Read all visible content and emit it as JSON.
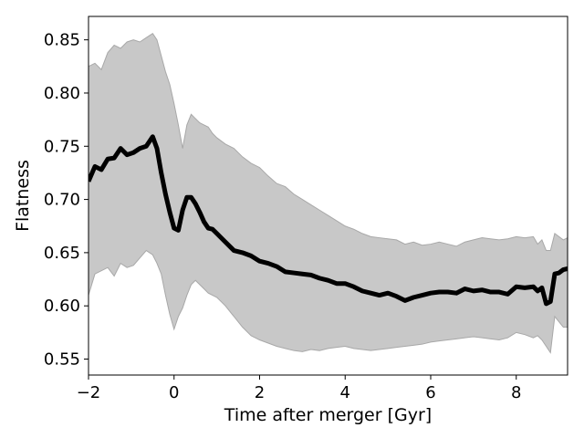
{
  "chart_data": {
    "type": "line",
    "title": "",
    "xlabel": "Time after merger [Gyr]",
    "ylabel": "Flatness",
    "xlim": [
      -2,
      9.2
    ],
    "ylim": [
      0.535,
      0.872
    ],
    "x_ticks": [
      -2,
      0,
      2,
      4,
      6,
      8
    ],
    "y_ticks": [
      0.55,
      0.6,
      0.65,
      0.7,
      0.75,
      0.8,
      0.85
    ],
    "grid": false,
    "legend": "none",
    "colors": {
      "line": "#000000",
      "band": "#c8c8c8",
      "band_edge": "#a8a8a8"
    },
    "series": [
      {
        "x": [
          -2.0,
          -1.85,
          -1.7,
          -1.55,
          -1.4,
          -1.25,
          -1.1,
          -0.95,
          -0.8,
          -0.65,
          -0.5,
          -0.4,
          -0.3,
          -0.2,
          -0.1,
          0.0,
          0.1,
          0.2,
          0.3,
          0.4,
          0.5,
          0.6,
          0.7,
          0.8,
          0.9,
          1.0,
          1.2,
          1.4,
          1.6,
          1.8,
          2.0,
          2.2,
          2.4,
          2.6,
          2.8,
          3.0,
          3.2,
          3.4,
          3.6,
          3.8,
          4.0,
          4.2,
          4.4,
          4.6,
          4.8,
          5.0,
          5.2,
          5.4,
          5.6,
          5.8,
          6.0,
          6.2,
          6.4,
          6.6,
          6.8,
          7.0,
          7.2,
          7.4,
          7.6,
          7.8,
          8.0,
          8.2,
          8.4,
          8.5,
          8.6,
          8.7,
          8.8,
          8.9,
          9.0,
          9.1,
          9.2
        ],
        "y": [
          0.717,
          0.731,
          0.728,
          0.738,
          0.739,
          0.748,
          0.742,
          0.744,
          0.748,
          0.75,
          0.759,
          0.748,
          0.725,
          0.705,
          0.688,
          0.673,
          0.671,
          0.69,
          0.702,
          0.702,
          0.696,
          0.688,
          0.679,
          0.673,
          0.672,
          0.668,
          0.66,
          0.652,
          0.65,
          0.647,
          0.642,
          0.64,
          0.637,
          0.632,
          0.631,
          0.63,
          0.629,
          0.626,
          0.624,
          0.621,
          0.621,
          0.618,
          0.614,
          0.612,
          0.61,
          0.612,
          0.609,
          0.605,
          0.608,
          0.61,
          0.612,
          0.613,
          0.613,
          0.612,
          0.616,
          0.614,
          0.615,
          0.613,
          0.613,
          0.611,
          0.618,
          0.617,
          0.618,
          0.614,
          0.617,
          0.602,
          0.604,
          0.63,
          0.631,
          0.634,
          0.635
        ],
        "upper": [
          0.825,
          0.828,
          0.822,
          0.838,
          0.845,
          0.842,
          0.848,
          0.85,
          0.848,
          0.852,
          0.856,
          0.85,
          0.835,
          0.82,
          0.808,
          0.79,
          0.77,
          0.748,
          0.77,
          0.78,
          0.776,
          0.772,
          0.77,
          0.768,
          0.762,
          0.758,
          0.752,
          0.748,
          0.74,
          0.734,
          0.73,
          0.722,
          0.715,
          0.712,
          0.705,
          0.7,
          0.695,
          0.69,
          0.685,
          0.68,
          0.675,
          0.672,
          0.668,
          0.665,
          0.664,
          0.663,
          0.662,
          0.658,
          0.66,
          0.657,
          0.658,
          0.66,
          0.658,
          0.656,
          0.66,
          0.662,
          0.664,
          0.663,
          0.662,
          0.663,
          0.665,
          0.664,
          0.665,
          0.658,
          0.662,
          0.652,
          0.652,
          0.668,
          0.665,
          0.662,
          0.664
        ],
        "lower": [
          0.61,
          0.63,
          0.633,
          0.636,
          0.628,
          0.64,
          0.636,
          0.638,
          0.645,
          0.652,
          0.648,
          0.64,
          0.63,
          0.61,
          0.592,
          0.578,
          0.59,
          0.598,
          0.61,
          0.62,
          0.624,
          0.62,
          0.616,
          0.612,
          0.61,
          0.608,
          0.6,
          0.59,
          0.58,
          0.572,
          0.568,
          0.565,
          0.562,
          0.56,
          0.558,
          0.557,
          0.559,
          0.558,
          0.56,
          0.561,
          0.562,
          0.56,
          0.559,
          0.558,
          0.559,
          0.56,
          0.561,
          0.562,
          0.563,
          0.564,
          0.566,
          0.567,
          0.568,
          0.569,
          0.57,
          0.571,
          0.57,
          0.569,
          0.568,
          0.57,
          0.575,
          0.573,
          0.57,
          0.572,
          0.568,
          0.562,
          0.556,
          0.59,
          0.585,
          0.58,
          0.58
        ]
      }
    ]
  }
}
